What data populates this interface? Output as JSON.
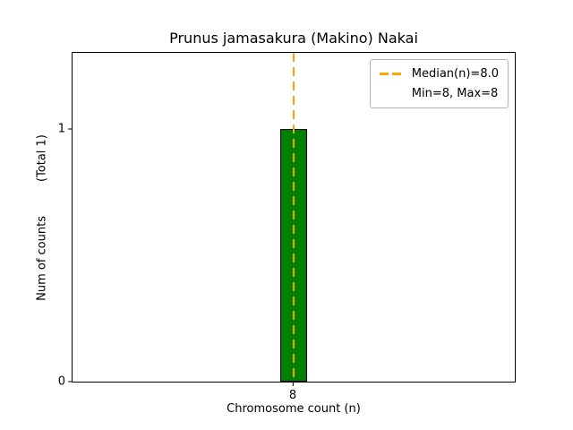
{
  "chart_data": {
    "type": "bar",
    "title": "Prunus jamasakura (Makino) Nakai",
    "xlabel": "Chromosome count (n)",
    "ylabel": "Num of counts",
    "ylabel_note": "(Total 1)",
    "categories": [
      "8"
    ],
    "values": [
      1
    ],
    "ylim": [
      0,
      1.3
    ],
    "yticks": [
      {
        "value": 0,
        "label": "0"
      },
      {
        "value": 1,
        "label": "1"
      }
    ],
    "xticks": [
      {
        "frac": 0.5,
        "label": "8"
      }
    ],
    "bar_color": "#008000",
    "bar_edge_color": "#000000",
    "median_line": {
      "x": 8,
      "frac": 0.5,
      "color": "#ffa500",
      "style": "dashed"
    },
    "legend": {
      "position": "upper right",
      "entries": [
        {
          "swatch": "dashed-line",
          "color": "#ffa500",
          "label": "Median(n)=8.0"
        },
        {
          "swatch": "none",
          "label": "Min=8, Max=8"
        }
      ]
    },
    "layout": {
      "bar_center_frac": 0.5,
      "bar_width_frac": 0.061,
      "grid": false
    }
  }
}
